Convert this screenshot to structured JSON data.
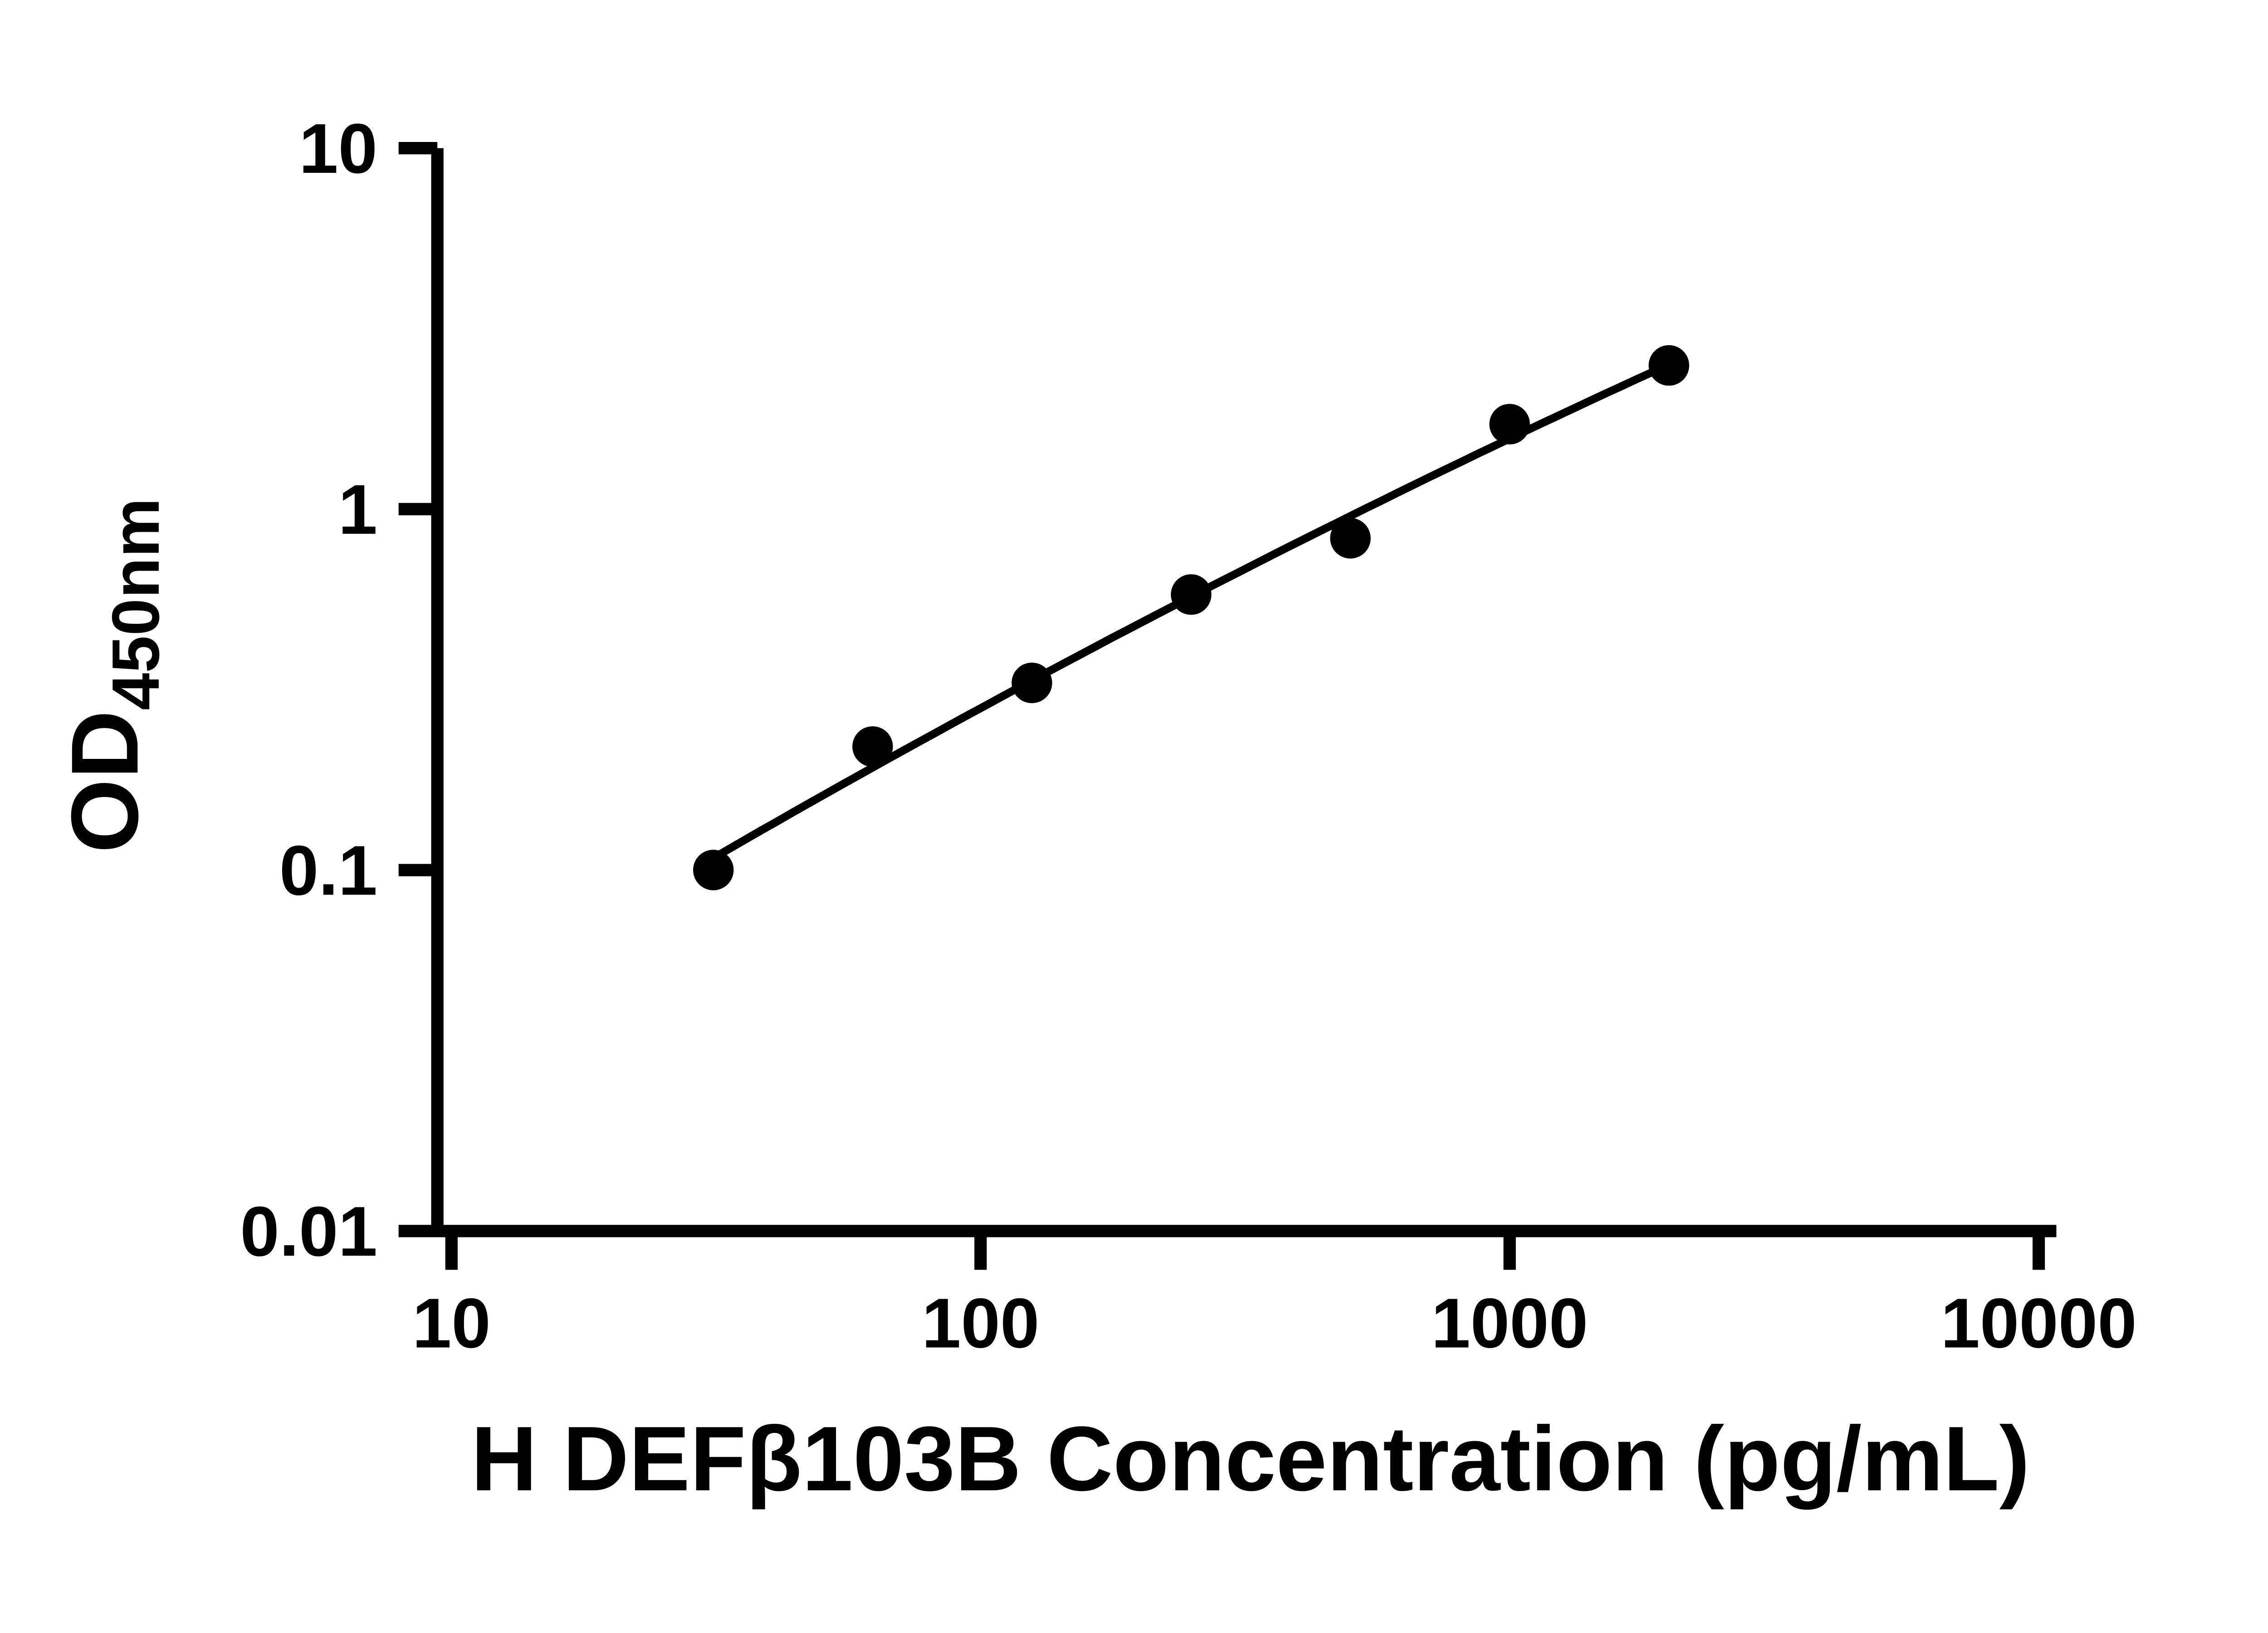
{
  "figure": {
    "background": "#ffffff"
  },
  "colors": {
    "axes": "#000000",
    "points": "#000000",
    "curve": "#000000"
  },
  "chart_data": {
    "type": "scatter",
    "title": "",
    "xlabel": "H DEFβ103B Concentration (pg/mL)",
    "ylabel": "OD450nm",
    "ylabel_main": "OD",
    "ylabel_sub": "450nm",
    "x_scale": "log10",
    "y_scale": "log10",
    "xlim": [
      10,
      10000
    ],
    "ylim": [
      0.01,
      10
    ],
    "x_tick_labels": [
      "10",
      "100",
      "1000",
      "10000"
    ],
    "y_tick_labels": [
      "0.01",
      "0.1",
      "1",
      "10"
    ],
    "grid": false,
    "legend": "none",
    "series": [
      {
        "marker": "filled-circle",
        "color": "#000000",
        "fit": "smooth log-log curve",
        "x": [
          31.25,
          62.5,
          125,
          250,
          500,
          1000,
          2000
        ],
        "y": [
          0.1,
          0.22,
          0.33,
          0.58,
          0.83,
          1.72,
          2.5
        ]
      }
    ]
  }
}
